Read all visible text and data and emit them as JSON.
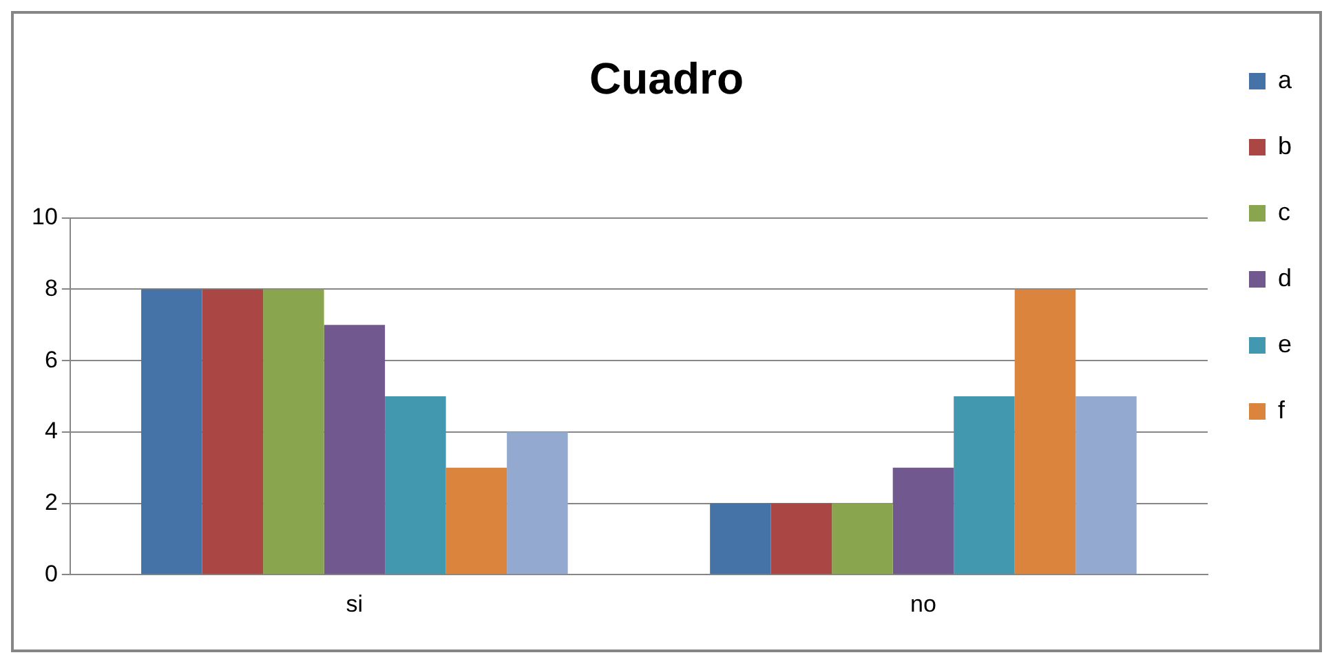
{
  "chart_data": {
    "type": "bar",
    "title": "Cuadro",
    "categories": [
      "si",
      "no"
    ],
    "series": [
      {
        "name": "a",
        "color": "#4572a7",
        "values": [
          8,
          2
        ]
      },
      {
        "name": "b",
        "color": "#aa4643",
        "values": [
          8,
          2
        ]
      },
      {
        "name": "c",
        "color": "#89a54e",
        "values": [
          8,
          2
        ]
      },
      {
        "name": "d",
        "color": "#71588f",
        "values": [
          7,
          3
        ]
      },
      {
        "name": "e",
        "color": "#4198af",
        "values": [
          5,
          5
        ]
      },
      {
        "name": "f",
        "color": "#db843d",
        "values": [
          3,
          8
        ]
      },
      {
        "color": "#93a9cf",
        "values": [
          4,
          5
        ]
      }
    ],
    "ylim": [
      0,
      10
    ],
    "yticks": [
      0,
      2,
      4,
      6,
      8,
      10
    ],
    "grid": "y",
    "legend": "right"
  }
}
